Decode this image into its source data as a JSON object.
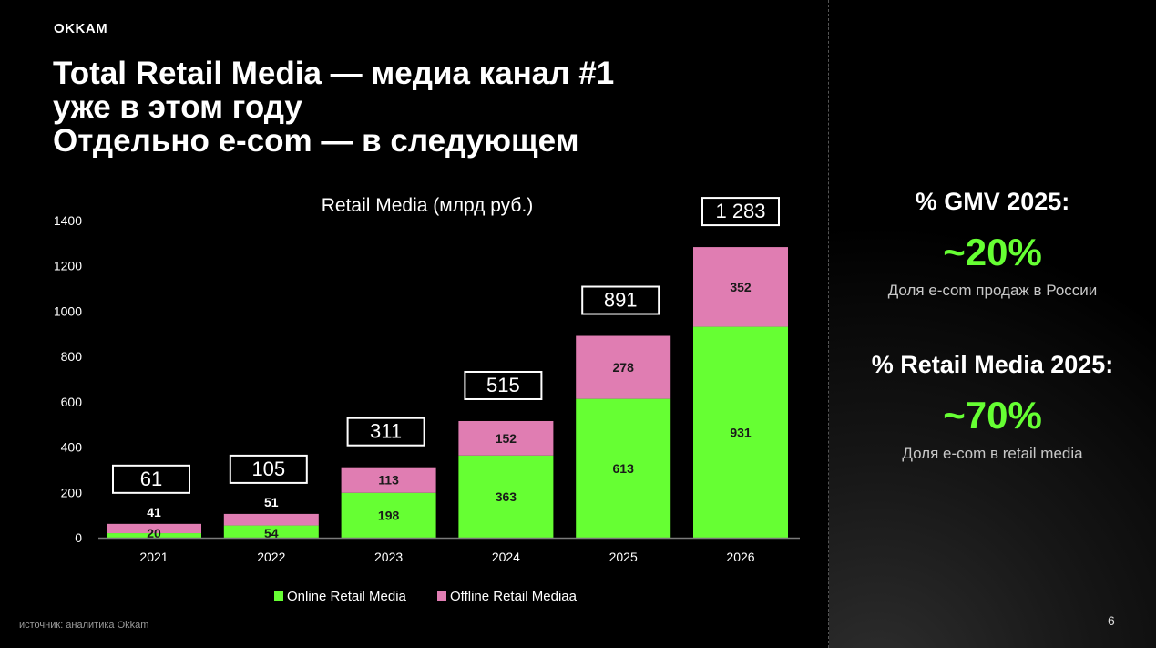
{
  "logo": "OKKAM",
  "title_lines": [
    "Total Retail Media — медиа канал #1",
    "уже в этом году",
    "Отдельно e-com — в следующем"
  ],
  "chart_data": {
    "type": "bar",
    "stacked": true,
    "title": "Retail Media (млрд руб.)",
    "categories": [
      "2021",
      "2022",
      "2023",
      "2024",
      "2025",
      "2026"
    ],
    "series": [
      {
        "name": "Online Retail Media",
        "values": [
          20,
          54,
          198,
          363,
          613,
          931
        ],
        "color": "#66ff33"
      },
      {
        "name": "Offline Retail Mediaa",
        "values": [
          41,
          51,
          113,
          152,
          278,
          352
        ],
        "color": "#e07db2"
      }
    ],
    "totals": [
      "61",
      "105",
      "311",
      "515",
      "891",
      "1 283"
    ],
    "y_ticks": [
      0,
      200,
      400,
      600,
      800,
      1000,
      1200,
      1400
    ],
    "ylim": [
      0,
      1400
    ],
    "grid": false,
    "legend_position": "bottom"
  },
  "stats": [
    {
      "title": "% GMV 2025:",
      "value": "~20%",
      "desc": "Доля e-com продаж в России"
    },
    {
      "title": "% Retail Media 2025:",
      "value": "~70%",
      "desc": "Доля e-com в retail media"
    }
  ],
  "source": "источник: аналитика Okkam",
  "page_number": "6"
}
